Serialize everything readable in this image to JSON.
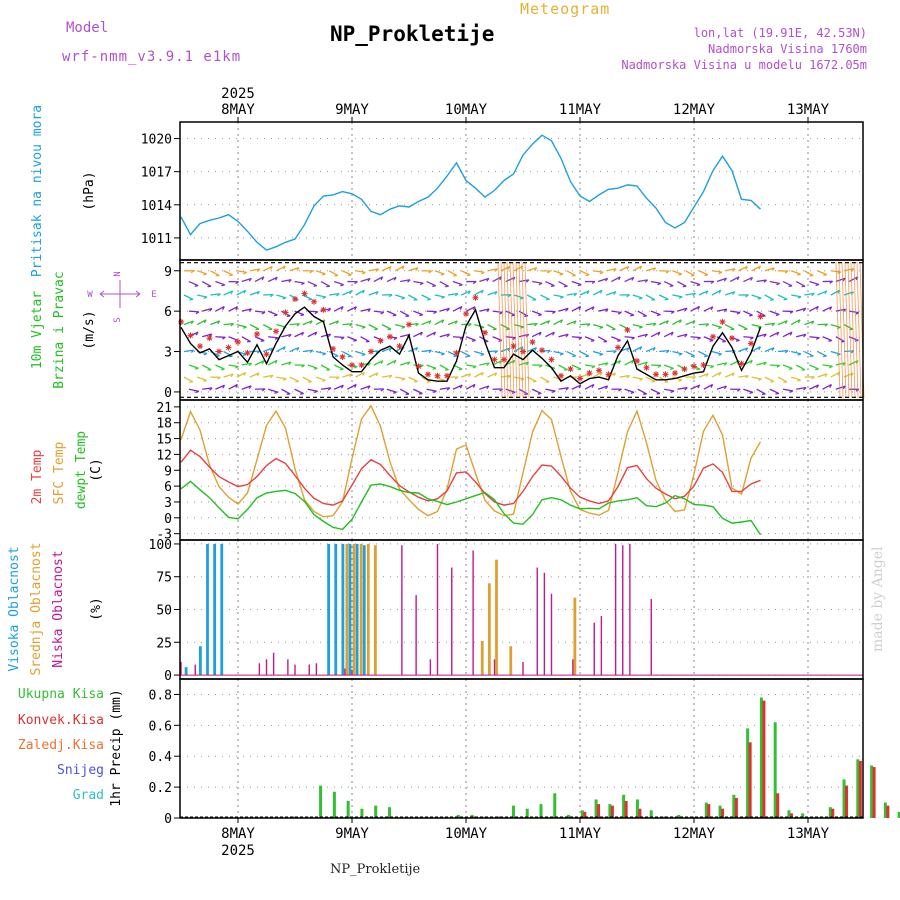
{
  "header": {
    "model_label": "Model",
    "model": "wrf-nmm_v3.9.1 e1km",
    "title": "NP_Prokletije",
    "product": "Meteogram",
    "coords": "lon,lat (19.91E, 42.53N)",
    "altitude": "Nadmorska Visina 1760m",
    "model_altitude": "Nadmorska Visina u modelu 1672.05m"
  },
  "footer": {
    "station": "NP_Prokletije",
    "credit": "made by Angel"
  },
  "colors": {
    "pressure": "#1ca0e0",
    "temp2m": "#e84040",
    "sfc_temp": "#e0a030",
    "dewpoint": "#20c020",
    "cloud_high": "#1ca0e0",
    "cloud_mid": "#e0a030",
    "cloud_low": "#c01890",
    "precip_total": "#30c030",
    "precip_conv": "#e03030",
    "wind_speed": "#000000",
    "gust_marker": "#e03030",
    "title_accent": "#b050d0"
  },
  "chart_data": {
    "type": "meteogram",
    "x_axis": {
      "year": "2025",
      "day_labels": [
        "8MAY",
        "9MAY",
        "10MAY",
        "11MAY",
        "12MAY",
        "13MAY"
      ],
      "start": "7MAY 12h",
      "step_hours": 3
    },
    "panels": [
      {
        "id": "pressure",
        "type": "line",
        "ylabel": "Pritisak na nivou mora",
        "unit": "(hPa)",
        "yticks": [
          1011,
          1014,
          1017,
          1020
        ],
        "ylim": [
          1009,
          1021.5
        ],
        "series": [
          {
            "key": "pressure",
            "values": [
              1012.9,
              1011.3,
              1012.3,
              1012.6,
              1012.8,
              1013.1,
              1012.5,
              1011.6,
              1010.6,
              1009.9,
              1010.2,
              1010.6,
              1010.9,
              1012.2,
              1013.9,
              1014.8,
              1014.9,
              1015.2,
              1015.0,
              1014.5,
              1013.4,
              1013.1,
              1013.6,
              1013.9,
              1013.8,
              1014.3,
              1014.7,
              1015.5,
              1016.6,
              1017.8,
              1016.2,
              1015.5,
              1014.7,
              1015.3,
              1016.2,
              1016.8,
              1018.5,
              1019.5,
              1020.3,
              1019.8,
              1018.2,
              1016.1,
              1014.8,
              1014.3,
              1014.9,
              1015.4,
              1015.5,
              1015.8,
              1015.7,
              1014.6,
              1013.7,
              1012.4,
              1011.9,
              1012.4,
              1013.8,
              1015.2,
              1017.1,
              1018.4,
              1017.1,
              1014.5,
              1014.4,
              1013.6
            ]
          }
        ]
      },
      {
        "id": "wind",
        "type": "line",
        "ylabel": "10m Vjetar",
        "ylabel2": "Brzina i Pravac",
        "unit": "(m/s)",
        "compass": [
          "N",
          "W",
          "E",
          "S"
        ],
        "yticks": [
          0,
          3,
          6,
          9
        ],
        "ylim": [
          -0.6,
          9.8
        ],
        "series": [
          {
            "key": "wind_speed",
            "values": [
              4.8,
              3.6,
              2.9,
              3.2,
              2.4,
              2.7,
              3.0,
              2.2,
              3.5,
              2.1,
              3.6,
              4.9,
              5.8,
              6.3,
              5.6,
              5.2,
              2.6,
              2.0,
              1.5,
              1.5,
              2.4,
              3.1,
              3.4,
              2.8,
              4.2,
              1.4,
              0.9,
              0.8,
              0.8,
              2.3,
              4.9,
              6.1,
              3.7,
              1.8,
              1.8,
              2.8,
              2.4,
              3.1,
              2.5,
              1.8,
              0.8,
              1.2,
              0.6,
              1.0,
              1.1,
              0.9,
              2.7,
              3.8,
              1.7,
              1.3,
              0.9,
              0.9,
              1.0,
              1.2,
              1.4,
              1.5,
              3.4,
              4.4,
              3.3,
              1.6,
              2.9,
              4.8
            ]
          },
          {
            "key": "gust_marker",
            "values": [
              5.2,
              4.2,
              3.4,
              4.0,
              3.0,
              3.3,
              3.7,
              2.9,
              4.3,
              2.8,
              4.5,
              5.9,
              6.9,
              7.3,
              6.7,
              6.1,
              3.2,
              2.6,
              2.0,
              2.0,
              3.0,
              3.8,
              4.1,
              3.4,
              5.0,
              1.9,
              1.3,
              1.2,
              1.2,
              2.9,
              5.8,
              7.0,
              4.4,
              2.4,
              2.4,
              3.4,
              3.0,
              3.7,
              3.1,
              2.4,
              1.2,
              1.7,
              1.0,
              1.4,
              1.6,
              1.3,
              3.3,
              4.6,
              2.3,
              1.8,
              1.3,
              1.3,
              1.4,
              1.7,
              1.9,
              2.0,
              4.1,
              5.2,
              4.0,
              2.1,
              3.6,
              5.6
            ]
          }
        ]
      },
      {
        "id": "temperature",
        "type": "line",
        "ylabel": "2m Temp",
        "ylabel2": "SFC Temp",
        "ylabel3": "dewpt Temp",
        "unit": "(C)",
        "yticks": [
          -3,
          0,
          3,
          6,
          9,
          12,
          15,
          18,
          21
        ],
        "ylim": [
          -4.2,
          22.3
        ],
        "series": [
          {
            "key": "temp2m",
            "values": [
              10.5,
              12.8,
              11.6,
              9.6,
              7.8,
              6.8,
              5.9,
              6.3,
              7.8,
              9.9,
              11.2,
              10.3,
              8.0,
              5.6,
              3.7,
              2.7,
              2.4,
              3.2,
              6.2,
              9.3,
              11.0,
              10.1,
              8.0,
              6.1,
              4.9,
              3.9,
              3.2,
              3.6,
              5.1,
              8.5,
              8.7,
              6.8,
              4.6,
              3.0,
              2.4,
              2.7,
              5.0,
              7.8,
              10.0,
              9.8,
              7.9,
              5.6,
              3.9,
              3.2,
              2.7,
              3.2,
              5.9,
              9.5,
              9.9,
              7.4,
              5.6,
              4.5,
              3.6,
              4.1,
              6.0,
              9.4,
              10.2,
              8.6,
              5.0,
              5.0,
              6.4,
              7.1
            ]
          },
          {
            "key": "sfc_temp",
            "values": [
              14.8,
              20.1,
              16.6,
              10.0,
              5.9,
              3.9,
              2.6,
              4.7,
              11.0,
              17.5,
              20.2,
              17.0,
              9.3,
              3.4,
              1.2,
              0.2,
              0.4,
              3.0,
              11.2,
              18.7,
              21.2,
              17.3,
              10.6,
              5.5,
              3.4,
              1.6,
              0.4,
              1.2,
              5.4,
              13.0,
              13.8,
              8.4,
              3.3,
              1.3,
              0.4,
              0.7,
              8.5,
              16.2,
              20.3,
              18.6,
              11.6,
              5.0,
              1.6,
              0.9,
              0.5,
              1.4,
              8.6,
              16.3,
              20.2,
              14.2,
              7.1,
              3.3,
              1.2,
              1.5,
              8.3,
              16.4,
              19.4,
              15.7,
              5.6,
              4.5,
              11.3,
              14.4
            ]
          },
          {
            "key": "dewpoint",
            "values": [
              5.5,
              6.9,
              5.3,
              3.8,
              1.9,
              0.1,
              -0.2,
              1.6,
              3.8,
              4.7,
              5.0,
              5.2,
              4.6,
              3.1,
              0.6,
              -0.7,
              -1.8,
              -2.2,
              -0.3,
              3.0,
              6.2,
              6.4,
              5.9,
              5.2,
              4.8,
              4.7,
              3.6,
              3.1,
              2.5,
              3.0,
              3.6,
              4.2,
              4.8,
              3.4,
              0.8,
              -1.0,
              -1.2,
              0.6,
              3.4,
              3.8,
              3.4,
              2.4,
              1.7,
              1.8,
              1.7,
              2.8,
              3.2,
              3.4,
              3.8,
              2.3,
              2.1,
              2.8,
              4.2,
              3.6,
              2.5,
              2.4,
              2.1,
              -0.1,
              -1.0,
              -0.8,
              -0.5,
              -3.2
            ]
          }
        ]
      },
      {
        "id": "clouds",
        "type": "bar",
        "ylabel": "Visoka Oblacnost",
        "ylabel2": "Srednja Oblacnost",
        "ylabel3": "Niska Oblacnost",
        "unit": "(%)",
        "yticks": [
          0,
          25,
          50,
          75,
          100
        ],
        "ylim": [
          -3,
          103
        ],
        "series": [
          {
            "key": "cloud_low",
            "values": [
              10,
              0,
              8,
              0,
              0,
              0,
              0,
              0,
              0,
              0,
              0,
              9,
              12,
              17,
              0,
              12,
              8,
              0,
              8,
              9,
              0,
              0,
              0,
              5,
              4,
              0,
              0,
              0,
              0,
              0,
              0,
              99,
              0,
              61,
              0,
              12,
              100,
              0,
              82,
              0,
              0,
              95,
              0,
              0,
              12,
              0,
              0,
              0,
              10,
              0,
              82,
              78,
              62,
              0,
              0,
              12,
              0,
              0,
              40,
              45,
              0,
              100,
              99,
              100,
              0,
              0,
              58
            ]
          },
          {
            "key": "cloud_mid",
            "values": [
              0,
              0,
              0,
              0,
              0,
              0,
              0,
              0,
              0,
              0,
              0,
              0,
              0,
              0,
              0,
              0,
              0,
              0,
              0,
              0,
              0,
              0,
              0,
              100,
              100,
              100,
              100,
              99,
              0,
              0,
              0,
              0,
              0,
              0,
              0,
              0,
              0,
              0,
              0,
              0,
              0,
              0,
              26,
              70,
              88,
              0,
              22,
              0,
              0,
              0,
              0,
              0,
              0,
              0,
              0,
              59,
              0,
              0,
              0,
              0,
              0,
              0,
              0,
              0,
              0,
              0,
              0
            ]
          },
          {
            "key": "cloud_high",
            "values": [
              0,
              6,
              0,
              22,
              100,
              100,
              100,
              0,
              0,
              0,
              0,
              0,
              0,
              0,
              0,
              0,
              0,
              0,
              0,
              0,
              0,
              100,
              100,
              100,
              100,
              100,
              99,
              0,
              0,
              0,
              0,
              0,
              0,
              0,
              0,
              0,
              0,
              0,
              0,
              0,
              0,
              0,
              0,
              0,
              0,
              0,
              0,
              0,
              0,
              0,
              0,
              0,
              0,
              0,
              0,
              0,
              0,
              0,
              0,
              0,
              0,
              0,
              0,
              0,
              0,
              0,
              0
            ]
          }
        ]
      },
      {
        "id": "precip",
        "type": "bar",
        "ylabel": "1hr Precip",
        "unit": "(mm)",
        "legend": [
          "Ukupna Kisa",
          "Konvek.Kisa",
          "Zaledj.Kisa",
          "Snijeg",
          "Grad"
        ],
        "legend_colors": [
          "#30c030",
          "#e03030",
          "#f07030",
          "#5050e0",
          "#30c0c0"
        ],
        "yticks": [
          0,
          0.2,
          0.4,
          0.6,
          0.8
        ],
        "ylim": [
          0,
          0.9
        ],
        "series": [
          {
            "key": "precip_total",
            "values": [
              0,
              0,
              0.01,
              0.01,
              0.21,
              0.17,
              0.11,
              0.06,
              0.08,
              0.07,
              0,
              0,
              0,
              0,
              0.02,
              0.02,
              0.01,
              0.01,
              0.08,
              0.06,
              0.09,
              0.16,
              0.02,
              0.05,
              0.12,
              0.09,
              0.15,
              0.12,
              0.05,
              0.01,
              0.02,
              0.01,
              0.1,
              0.08,
              0.15,
              0.58,
              0.78,
              0.62,
              0.05,
              0.03,
              0.01,
              0.07,
              0.25,
              0.38,
              0.34,
              0.1,
              0.04,
              0.02,
              0.02,
              0.01,
              0.05,
              0.03
            ]
          },
          {
            "key": "precip_conv",
            "values": [
              0,
              0,
              0,
              0,
              0,
              0,
              0,
              0,
              0,
              0,
              0,
              0,
              0,
              0,
              0,
              0.01,
              0,
              0,
              0,
              0,
              0,
              0,
              0,
              0.04,
              0.09,
              0.08,
              0.11,
              0.06,
              0,
              0,
              0.01,
              0,
              0.09,
              0.06,
              0.13,
              0.49,
              0.76,
              0.16,
              0.03,
              0,
              0,
              0.06,
              0.21,
              0.37,
              0.33,
              0.08,
              0,
              0,
              0,
              0,
              0,
              0
            ]
          }
        ]
      }
    ]
  }
}
